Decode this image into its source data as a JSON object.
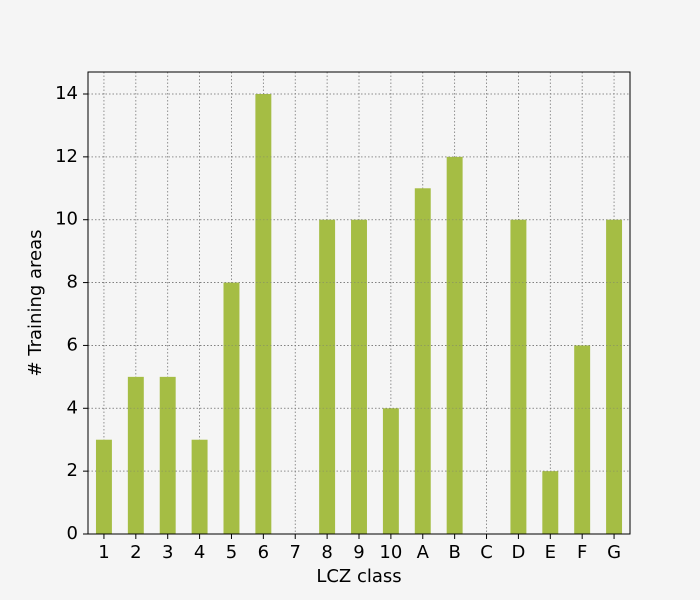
{
  "chart_data": {
    "type": "bar",
    "xlabel": "LCZ class",
    "ylabel": "# Training areas",
    "categories": [
      "1",
      "2",
      "3",
      "4",
      "5",
      "6",
      "7",
      "8",
      "9",
      "10",
      "A",
      "B",
      "C",
      "D",
      "E",
      "F",
      "G"
    ],
    "values": [
      3,
      5,
      5,
      3,
      8,
      14,
      0,
      10,
      10,
      4,
      11,
      12,
      0,
      10,
      2,
      6,
      10
    ],
    "color": "#a5bd44",
    "ylim": [
      0,
      14.7
    ],
    "yticks": [
      0,
      2,
      4,
      6,
      8,
      10,
      12,
      14
    ],
    "grid": true
  }
}
